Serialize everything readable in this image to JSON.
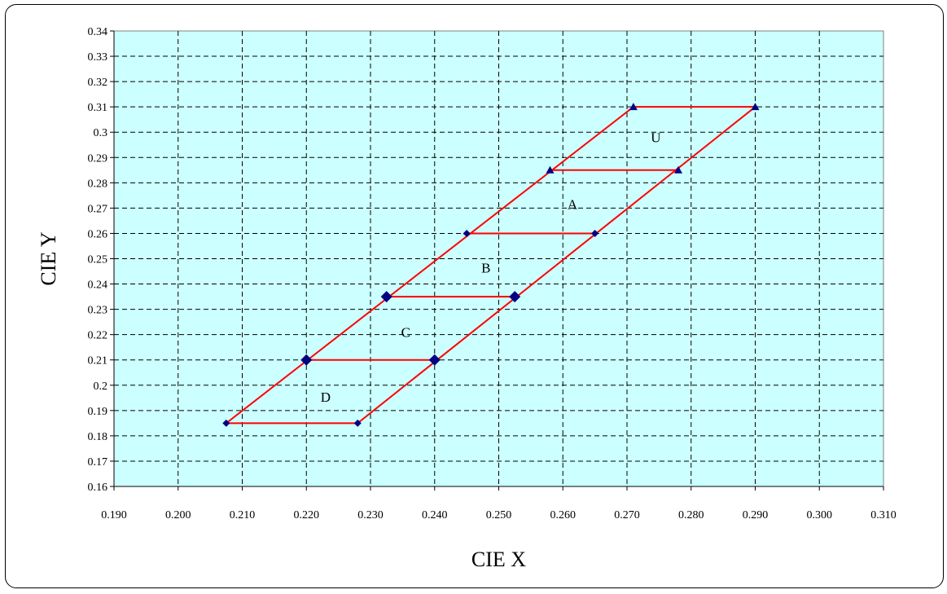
{
  "chart_data": {
    "type": "scatter",
    "xlabel": "CIE X",
    "ylabel": "CIE Y",
    "xlim": [
      0.19,
      0.31
    ],
    "ylim": [
      0.16,
      0.34
    ],
    "x_ticks": [
      "0.190",
      "0.200",
      "0.210",
      "0.220",
      "0.230",
      "0.240",
      "0.250",
      "0.260",
      "0.270",
      "0.280",
      "0.290",
      "0.300",
      "0.310"
    ],
    "y_ticks": [
      "0.16",
      "0.17",
      "0.18",
      "0.19",
      "0.2",
      "0.21",
      "0.22",
      "0.23",
      "0.24",
      "0.25",
      "0.26",
      "0.27",
      "0.28",
      "0.29",
      "0.3",
      "0.31",
      "0.32",
      "0.33",
      "0.34"
    ],
    "grid": true,
    "plot_background": "#ccffff",
    "line_color": "#ff0000",
    "marker_color": "#000080",
    "bin_boundaries": [
      {
        "points": [
          [
            0.2075,
            0.185
          ],
          [
            0.228,
            0.185
          ]
        ],
        "marker": "diamond",
        "size": "small"
      },
      {
        "points": [
          [
            0.22,
            0.21
          ],
          [
            0.24,
            0.21
          ]
        ],
        "marker": "diamond",
        "size": "large"
      },
      {
        "points": [
          [
            0.2325,
            0.235
          ],
          [
            0.2525,
            0.235
          ]
        ],
        "marker": "diamond",
        "size": "large"
      },
      {
        "points": [
          [
            0.245,
            0.26
          ],
          [
            0.265,
            0.26
          ]
        ],
        "marker": "diamond",
        "size": "small"
      },
      {
        "points": [
          [
            0.258,
            0.285
          ],
          [
            0.278,
            0.285
          ]
        ],
        "marker": "triangle",
        "size": "small"
      },
      {
        "points": [
          [
            0.271,
            0.31
          ],
          [
            0.29,
            0.31
          ]
        ],
        "marker": "triangle",
        "size": "small"
      }
    ],
    "edges": [
      [
        [
          0.2075,
          0.185
        ],
        [
          0.271,
          0.31
        ]
      ],
      [
        [
          0.228,
          0.185
        ],
        [
          0.29,
          0.31
        ]
      ]
    ],
    "annotations": [
      {
        "text": "U",
        "x": 0.2745,
        "y": 0.298
      },
      {
        "text": "A",
        "x": 0.2615,
        "y": 0.2715
      },
      {
        "text": "B",
        "x": 0.248,
        "y": 0.2465
      },
      {
        "text": "C",
        "x": 0.2355,
        "y": 0.221
      },
      {
        "text": "D",
        "x": 0.223,
        "y": 0.1955
      }
    ]
  }
}
